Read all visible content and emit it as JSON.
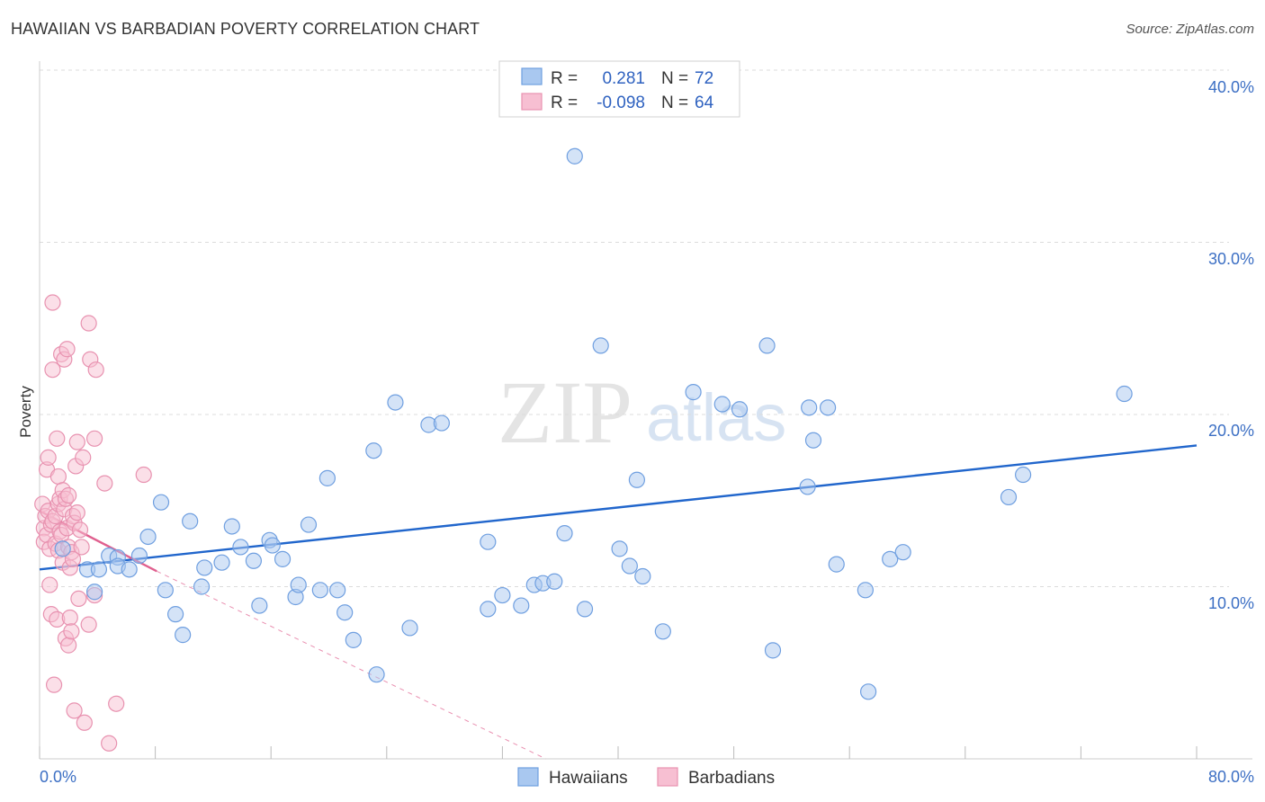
{
  "title": "HAWAIIAN VS BARBADIAN POVERTY CORRELATION CHART",
  "source": "Source: ZipAtlas.com",
  "watermark": {
    "zip": "ZIP",
    "atlas": "atlas"
  },
  "chart_data": {
    "type": "scatter",
    "title": "HAWAIIAN VS BARBADIAN POVERTY CORRELATION CHART",
    "xlabel": "",
    "ylabel": "Poverty",
    "xlim": [
      0,
      80
    ],
    "ylim": [
      0,
      40
    ],
    "x_tick_labels": [
      "0.0%",
      "80.0%"
    ],
    "y_ticks": [
      10,
      20,
      30,
      40
    ],
    "y_tick_labels": [
      "10.0%",
      "20.0%",
      "30.0%",
      "40.0%"
    ],
    "grid": true,
    "legend_position": "top-center",
    "legend": [
      {
        "r_label": "R =",
        "r_value": "0.281",
        "n_label": "N =",
        "n_value": "72"
      },
      {
        "r_label": "R =",
        "r_value": "-0.098",
        "n_label": "N =",
        "n_value": "64"
      }
    ],
    "series": [
      {
        "name": "Hawaiians",
        "color": "#6f9fe0",
        "fill": "#a9c8f0",
        "trend_color": "#2166cc",
        "trend": {
          "x": [
            0,
            80
          ],
          "y": [
            11.0,
            18.2
          ]
        },
        "points": [
          [
            1.6,
            12.2
          ],
          [
            3.3,
            11.0
          ],
          [
            3.8,
            9.7
          ],
          [
            4.1,
            11.0
          ],
          [
            4.8,
            11.8
          ],
          [
            5.4,
            11.7
          ],
          [
            5.4,
            11.2
          ],
          [
            6.2,
            11.0
          ],
          [
            6.9,
            11.8
          ],
          [
            7.5,
            12.9
          ],
          [
            8.4,
            14.9
          ],
          [
            8.7,
            9.8
          ],
          [
            9.4,
            8.4
          ],
          [
            9.9,
            7.2
          ],
          [
            10.4,
            13.8
          ],
          [
            11.2,
            10.0
          ],
          [
            11.4,
            11.1
          ],
          [
            12.6,
            11.4
          ],
          [
            13.3,
            13.5
          ],
          [
            13.9,
            12.3
          ],
          [
            14.8,
            11.5
          ],
          [
            15.2,
            8.9
          ],
          [
            15.9,
            12.7
          ],
          [
            16.1,
            12.4
          ],
          [
            16.8,
            11.6
          ],
          [
            17.7,
            9.4
          ],
          [
            17.9,
            10.1
          ],
          [
            18.6,
            13.6
          ],
          [
            19.4,
            9.8
          ],
          [
            19.9,
            16.3
          ],
          [
            20.6,
            9.8
          ],
          [
            21.1,
            8.5
          ],
          [
            21.7,
            6.9
          ],
          [
            23.1,
            17.9
          ],
          [
            23.3,
            4.9
          ],
          [
            24.6,
            20.7
          ],
          [
            25.6,
            7.6
          ],
          [
            26.9,
            19.4
          ],
          [
            27.8,
            19.5
          ],
          [
            31.0,
            8.7
          ],
          [
            31.0,
            12.6
          ],
          [
            32.0,
            9.5
          ],
          [
            33.3,
            8.9
          ],
          [
            34.2,
            10.1
          ],
          [
            34.8,
            10.2
          ],
          [
            35.6,
            10.3
          ],
          [
            36.3,
            13.1
          ],
          [
            37.0,
            35.0
          ],
          [
            37.7,
            8.7
          ],
          [
            38.8,
            24.0
          ],
          [
            40.1,
            12.2
          ],
          [
            40.8,
            11.2
          ],
          [
            41.3,
            16.2
          ],
          [
            41.7,
            10.6
          ],
          [
            43.1,
            7.4
          ],
          [
            45.2,
            21.3
          ],
          [
            47.2,
            20.6
          ],
          [
            48.4,
            20.3
          ],
          [
            50.3,
            24.0
          ],
          [
            50.7,
            6.3
          ],
          [
            53.1,
            15.8
          ],
          [
            53.2,
            20.4
          ],
          [
            53.5,
            18.5
          ],
          [
            55.1,
            11.3
          ],
          [
            57.1,
            9.8
          ],
          [
            57.3,
            3.9
          ],
          [
            58.8,
            11.6
          ],
          [
            59.7,
            12.0
          ],
          [
            67.0,
            15.2
          ],
          [
            68.0,
            16.5
          ],
          [
            75.0,
            21.2
          ],
          [
            54.5,
            20.4
          ]
        ]
      },
      {
        "name": "Barbadians",
        "color": "#e892b0",
        "fill": "#f7bfd2",
        "trend_color": "#e0608f",
        "trend": {
          "x": [
            0,
            8.1
          ],
          "y": [
            14.4,
            10.9
          ]
        },
        "trend_extension": {
          "x": [
            8.1,
            35.0
          ],
          "y": [
            10.9,
            0.0
          ]
        },
        "points": [
          [
            0.2,
            14.8
          ],
          [
            0.3,
            13.4
          ],
          [
            0.3,
            12.6
          ],
          [
            0.4,
            14.1
          ],
          [
            0.5,
            16.8
          ],
          [
            0.5,
            13.0
          ],
          [
            0.6,
            14.4
          ],
          [
            0.6,
            17.5
          ],
          [
            0.7,
            12.2
          ],
          [
            0.7,
            10.1
          ],
          [
            0.8,
            8.4
          ],
          [
            0.8,
            13.6
          ],
          [
            0.9,
            13.8
          ],
          [
            0.9,
            22.6
          ],
          [
            0.9,
            26.5
          ],
          [
            1.0,
            4.3
          ],
          [
            1.1,
            14.1
          ],
          [
            1.1,
            12.5
          ],
          [
            1.2,
            18.6
          ],
          [
            1.2,
            8.1
          ],
          [
            1.3,
            16.4
          ],
          [
            1.3,
            14.8
          ],
          [
            1.3,
            12.1
          ],
          [
            1.4,
            13.2
          ],
          [
            1.4,
            15.1
          ],
          [
            1.5,
            23.5
          ],
          [
            1.5,
            13.0
          ],
          [
            1.6,
            15.6
          ],
          [
            1.6,
            11.4
          ],
          [
            1.7,
            14.5
          ],
          [
            1.7,
            23.2
          ],
          [
            1.8,
            15.1
          ],
          [
            1.8,
            7.0
          ],
          [
            1.9,
            23.8
          ],
          [
            1.9,
            13.4
          ],
          [
            2.0,
            12.3
          ],
          [
            2.0,
            6.6
          ],
          [
            2.0,
            15.3
          ],
          [
            2.1,
            8.2
          ],
          [
            2.1,
            11.1
          ],
          [
            2.2,
            7.4
          ],
          [
            2.2,
            12.0
          ],
          [
            2.3,
            14.1
          ],
          [
            2.3,
            11.6
          ],
          [
            2.4,
            13.7
          ],
          [
            2.4,
            2.8
          ],
          [
            2.5,
            17.0
          ],
          [
            2.6,
            18.4
          ],
          [
            2.6,
            14.3
          ],
          [
            2.7,
            9.3
          ],
          [
            2.8,
            13.3
          ],
          [
            2.9,
            12.3
          ],
          [
            3.0,
            17.5
          ],
          [
            3.1,
            2.1
          ],
          [
            3.4,
            7.8
          ],
          [
            3.4,
            25.3
          ],
          [
            3.5,
            23.2
          ],
          [
            3.8,
            9.5
          ],
          [
            3.8,
            18.6
          ],
          [
            3.9,
            22.6
          ],
          [
            4.5,
            16.0
          ],
          [
            4.8,
            0.9
          ],
          [
            5.3,
            3.2
          ],
          [
            7.2,
            16.5
          ]
        ]
      }
    ]
  }
}
